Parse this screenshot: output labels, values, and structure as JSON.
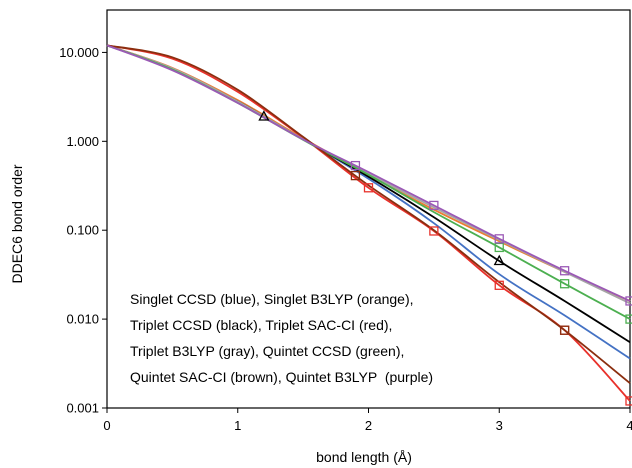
{
  "chart_data": {
    "type": "line",
    "xlabel": "bond length (Å)",
    "ylabel": "DDEC6 bond order",
    "x_ticks": [
      "0",
      "1",
      "2",
      "3",
      "4"
    ],
    "y_ticks": [
      "0.001",
      "0.010",
      "0.100",
      "1.000",
      "10.000"
    ],
    "xlim": [
      0,
      4
    ],
    "ylim": [
      0.001,
      30
    ],
    "y_scale": "log",
    "grid": false,
    "legend_text": [
      "Singlet CCSD (blue), Singlet B3LYP (orange),",
      "Triplet CCSD (black), Triplet SAC-CI (red),",
      "Triplet B3LYP (gray), Quintet CCSD (green),",
      "Quintet SAC-CI (brown), Quintet B3LYP",
      "(purple)"
    ],
    "series": [
      {
        "color": "#4472c4",
        "x": [
          0,
          0.5,
          1.0,
          1.5,
          2.0,
          2.5,
          3.0,
          3.5,
          4.0
        ],
        "y": [
          12,
          6.5,
          2.8,
          1.05,
          0.38,
          0.12,
          0.032,
          0.011,
          0.0036
        ]
      },
      {
        "color": "#ed7d31",
        "x": [
          0,
          0.5,
          1.0,
          1.5,
          2.0,
          2.5,
          3.0,
          3.5,
          4.0
        ],
        "y": [
          12,
          6.7,
          2.9,
          1.08,
          0.42,
          0.17,
          0.075,
          0.034,
          0.016
        ]
      },
      {
        "color": "#000000",
        "x": [
          0,
          0.5,
          1.0,
          1.2,
          1.5,
          2.0,
          2.5,
          3.0,
          3.5,
          4.0
        ],
        "y": [
          12,
          6.5,
          2.8,
          1.9,
          1.05,
          0.4,
          0.14,
          0.045,
          0.016,
          0.0055
        ],
        "marker": "triangle",
        "marker_x": [
          1.2,
          3.0
        ]
      },
      {
        "color": "#e8312b",
        "x": [
          0,
          0.5,
          1.0,
          1.5,
          2.0,
          2.5,
          3.0,
          3.5,
          4.0
        ],
        "y": [
          12,
          8.5,
          3.6,
          1.1,
          0.3,
          0.098,
          0.024,
          0.0075,
          0.0012
        ],
        "marker": "square",
        "marker_x": [
          2.0,
          2.5,
          3.0,
          3.5,
          4.0
        ]
      },
      {
        "color": "#a5a5a5",
        "x": [
          0,
          0.5,
          1.0,
          1.5,
          2.0,
          2.5,
          3.0,
          3.5,
          4.0
        ],
        "y": [
          12,
          6.6,
          2.8,
          1.06,
          0.43,
          0.18,
          0.078,
          0.034,
          0.015
        ]
      },
      {
        "color": "#4caf50",
        "x": [
          0,
          0.5,
          1.0,
          1.5,
          2.0,
          2.5,
          3.0,
          3.5,
          4.0
        ],
        "y": [
          12,
          6.4,
          2.7,
          1.04,
          0.42,
          0.16,
          0.064,
          0.025,
          0.01
        ],
        "marker": "square",
        "marker_x": [
          3.0,
          3.5,
          4.0
        ]
      },
      {
        "color": "#8b2e0f",
        "x": [
          0,
          0.5,
          1.0,
          1.5,
          2.0,
          2.5,
          3.0,
          3.5,
          4.0
        ],
        "y": [
          12,
          8.8,
          3.8,
          1.12,
          0.32,
          0.1,
          0.026,
          0.0075,
          0.0019
        ],
        "marker": "square",
        "marker_x": [
          1.9,
          3.5
        ]
      },
      {
        "color": "#9b59b6",
        "x": [
          0,
          0.5,
          1.0,
          1.5,
          2.0,
          2.5,
          3.0,
          3.5,
          4.0
        ],
        "y": [
          12,
          6.3,
          2.7,
          1.05,
          0.45,
          0.19,
          0.08,
          0.035,
          0.016
        ],
        "marker": "square",
        "marker_x": [
          1.9,
          2.5,
          3.0,
          3.5,
          4.0
        ]
      }
    ]
  }
}
